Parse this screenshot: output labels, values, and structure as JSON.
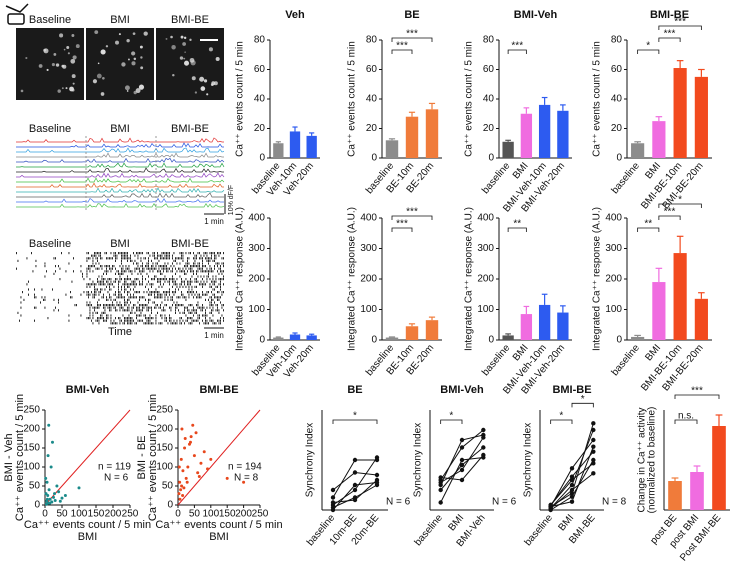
{
  "imaging": {
    "image_labels": [
      "Baseline",
      "BMI",
      "BMI-BE"
    ],
    "trace_labels": [
      "Baseline",
      "BMI",
      "BMI-BE"
    ],
    "trace_scale": "1 min",
    "trace_dff": "10% dF/F",
    "raster_labels": [
      "Baseline",
      "BMI",
      "BMI-BE"
    ],
    "raster_xlabel": "Time",
    "raster_scale": "1 min"
  },
  "chart_data": [
    {
      "type": "bar",
      "title": "Veh",
      "ylabel": "Ca⁺⁺ events count / 5 min",
      "categories": [
        "baseline",
        "Veh-10m",
        "Veh-20m"
      ],
      "values": [
        10,
        18,
        15
      ],
      "errors": [
        1,
        3,
        2
      ],
      "colors": [
        "#8c8c8c",
        "#2d5bf0",
        "#2d5bf0"
      ],
      "ylim": [
        0,
        80
      ],
      "yticks": [
        0,
        20,
        40,
        60,
        80
      ]
    },
    {
      "type": "bar",
      "title": "BE",
      "ylabel": "Ca⁺⁺ events count / 5 min",
      "categories": [
        "baseline",
        "BE-10m",
        "BE-20m"
      ],
      "values": [
        12,
        28,
        33
      ],
      "errors": [
        1,
        3,
        4
      ],
      "colors": [
        "#8c8c8c",
        "#f07b3a",
        "#f07b3a"
      ],
      "ylim": [
        0,
        80
      ],
      "yticks": [
        0,
        20,
        40,
        60,
        80
      ],
      "brackets": [
        {
          "from": 0,
          "to": 1,
          "text": "***"
        },
        {
          "from": 0,
          "to": 2,
          "text": "***"
        }
      ]
    },
    {
      "type": "bar",
      "title": "BMI-Veh",
      "ylabel": "Ca⁺⁺ events count / 5 min",
      "categories": [
        "baseline",
        "BMI",
        "BMI-Veh-10m",
        "BMI-Veh-20m"
      ],
      "values": [
        11,
        30,
        36,
        32
      ],
      "errors": [
        1,
        4,
        5,
        4
      ],
      "colors": [
        "#555555",
        "#f06ce0",
        "#2d5bf0",
        "#2d5bf0"
      ],
      "ylim": [
        0,
        80
      ],
      "yticks": [
        0,
        20,
        40,
        60,
        80
      ],
      "brackets": [
        {
          "from": 0,
          "to": 1,
          "text": "***"
        }
      ]
    },
    {
      "type": "bar",
      "title": "BMI-BE",
      "ylabel": "Ca⁺⁺ events count / 5 min",
      "categories": [
        "baseline",
        "BMI",
        "BMI-BE-10m",
        "BMI-BE-20m"
      ],
      "values": [
        10,
        25,
        61,
        55
      ],
      "errors": [
        1,
        3,
        5,
        5
      ],
      "colors": [
        "#8c8c8c",
        "#f06ce0",
        "#f24a1e",
        "#f24a1e"
      ],
      "ylim": [
        0,
        80
      ],
      "yticks": [
        0,
        20,
        40,
        60,
        80
      ],
      "brackets": [
        {
          "from": 0,
          "to": 1,
          "text": "*"
        },
        {
          "from": 1,
          "to": 2,
          "text": "***"
        },
        {
          "from": 1,
          "to": 3,
          "text": "***"
        }
      ]
    },
    {
      "type": "bar",
      "ylabel": "Integrated Ca⁺⁺ response (A.U.)",
      "categories": [
        "baseline",
        "Veh-10m",
        "Veh-20m"
      ],
      "values": [
        8,
        18,
        15
      ],
      "errors": [
        2,
        5,
        4
      ],
      "colors": [
        "#8c8c8c",
        "#2d5bf0",
        "#2d5bf0"
      ],
      "ylim": [
        0,
        400
      ],
      "yticks": [
        0,
        100,
        200,
        300,
        400
      ]
    },
    {
      "type": "bar",
      "ylabel": "Integrated Ca⁺⁺ response (A.U.)",
      "categories": [
        "baseline",
        "BE-10m",
        "BE-20m"
      ],
      "values": [
        8,
        45,
        65
      ],
      "errors": [
        2,
        8,
        10
      ],
      "colors": [
        "#8c8c8c",
        "#f07b3a",
        "#f07b3a"
      ],
      "ylim": [
        0,
        400
      ],
      "yticks": [
        0,
        100,
        200,
        300,
        400
      ],
      "brackets": [
        {
          "from": 0,
          "to": 1,
          "text": "***"
        },
        {
          "from": 0,
          "to": 2,
          "text": "***"
        }
      ]
    },
    {
      "type": "bar",
      "ylabel": "Integrated Ca⁺⁺ response (A.U.)",
      "categories": [
        "baseline",
        "BMI",
        "BMI-Veh-10m",
        "BMI-Veh-20m"
      ],
      "values": [
        15,
        85,
        115,
        90
      ],
      "errors": [
        5,
        25,
        35,
        22
      ],
      "colors": [
        "#555555",
        "#f06ce0",
        "#2d5bf0",
        "#2d5bf0"
      ],
      "ylim": [
        0,
        400
      ],
      "yticks": [
        0,
        100,
        200,
        300,
        400
      ],
      "brackets": [
        {
          "from": 0,
          "to": 1,
          "text": "**"
        }
      ]
    },
    {
      "type": "bar",
      "ylabel": "Integrated Ca⁺⁺ response (A.U.)",
      "categories": [
        "baseline",
        "BMI",
        "BMI-BE-10m",
        "BMI-BE-20m"
      ],
      "values": [
        10,
        190,
        285,
        135
      ],
      "errors": [
        5,
        45,
        55,
        20
      ],
      "colors": [
        "#8c8c8c",
        "#f06ce0",
        "#f24a1e",
        "#f24a1e"
      ],
      "ylim": [
        0,
        400
      ],
      "yticks": [
        0,
        100,
        200,
        300,
        400
      ],
      "brackets": [
        {
          "from": 0,
          "to": 1,
          "text": "**"
        },
        {
          "from": 1,
          "to": 2,
          "text": "***"
        },
        {
          "from": 1,
          "to": 3,
          "text": "*"
        }
      ]
    },
    {
      "type": "scatter",
      "title": "BMI-Veh",
      "ylabel": "BMI - Veh",
      "ylabel2": "Ca⁺⁺ events count / 5 min",
      "xlabel": "Ca⁺⁺ events count / 5 min",
      "xlabel2": "BMI",
      "n_text": "n =  119",
      "N_text": "N = 6",
      "color": "#1a8a8a",
      "xlim": [
        0,
        250
      ],
      "ylim": [
        0,
        250
      ],
      "xticks": [
        0,
        50,
        100,
        150,
        200,
        250
      ],
      "yticks": [
        0,
        50,
        100,
        150,
        200,
        250
      ],
      "x": [
        5,
        8,
        10,
        12,
        15,
        3,
        20,
        25,
        6,
        30,
        18,
        40,
        50,
        9,
        2,
        14,
        60,
        35,
        22,
        4,
        100,
        11,
        7,
        45,
        28
      ],
      "y": [
        10,
        25,
        5,
        40,
        15,
        30,
        8,
        20,
        60,
        12,
        100,
        35,
        18,
        130,
        70,
        5,
        25,
        50,
        165,
        2,
        45,
        210,
        15,
        10,
        30
      ]
    },
    {
      "type": "scatter",
      "title": "BMI-BE",
      "ylabel": "BMI - BE",
      "ylabel2": "Ca⁺⁺ events count / 5 min",
      "xlabel": "Ca⁺⁺ events count / 5 min",
      "xlabel2": "BMI",
      "n_text": "n =  194",
      "N_text": "N = 8",
      "color": "#e8471c",
      "xlim": [
        0,
        250
      ],
      "ylim": [
        0,
        250
      ],
      "xticks": [
        0,
        50,
        100,
        150,
        200,
        250
      ],
      "yticks": [
        0,
        50,
        100,
        150,
        200,
        250
      ],
      "x": [
        5,
        10,
        15,
        20,
        8,
        30,
        40,
        25,
        50,
        12,
        3,
        60,
        35,
        18,
        70,
        45,
        28,
        80,
        90,
        22,
        6,
        55,
        14,
        100,
        65,
        11,
        38,
        150,
        4,
        200
      ],
      "y": [
        60,
        120,
        90,
        150,
        40,
        100,
        180,
        70,
        130,
        200,
        30,
        85,
        160,
        45,
        110,
        210,
        60,
        140,
        95,
        175,
        15,
        190,
        25,
        120,
        75,
        50,
        165,
        70,
        100,
        60
      ]
    },
    {
      "type": "paired",
      "title": "BE",
      "ylabel": "Synchrony Index",
      "N_text": "N = 6",
      "categories": [
        "baseline",
        "10m-BE",
        "20m-BE"
      ],
      "ylim": [
        0,
        0.4
      ],
      "subjects": [
        [
          0.02,
          0.08,
          0.21
        ],
        [
          0.05,
          0.2,
          0.2
        ],
        [
          0.01,
          0.05,
          0.1
        ],
        [
          0.03,
          0.04,
          0.12
        ],
        [
          0.08,
          0.15,
          0.14
        ],
        [
          0.0,
          0.1,
          0.11
        ]
      ],
      "brackets": [
        {
          "from": 0,
          "to": 2,
          "text": "*"
        }
      ]
    },
    {
      "type": "paired",
      "title": "BMI-Veh",
      "ylabel": "Synchrony Index",
      "N_text": "N = 6",
      "categories": [
        "baseline",
        "BMI",
        "BMI-Veh"
      ],
      "ylim": [
        0,
        0.4
      ],
      "subjects": [
        [
          0.12,
          0.25,
          0.32
        ],
        [
          0.1,
          0.28,
          0.3
        ],
        [
          0.08,
          0.18,
          0.25
        ],
        [
          0.13,
          0.12,
          0.22
        ],
        [
          0.03,
          0.2,
          0.21
        ],
        [
          0.11,
          0.16,
          0.29
        ]
      ],
      "brackets": [
        {
          "from": 0,
          "to": 1,
          "text": "*"
        }
      ]
    },
    {
      "type": "paired",
      "title": "BMI-BE",
      "ylabel": "Synchrony Index",
      "N_text": "N = 8",
      "categories": [
        "baseline",
        "BMI",
        "BMI-BE"
      ],
      "ylim": [
        0,
        0.6
      ],
      "subjects": [
        [
          0.02,
          0.1,
          0.52
        ],
        [
          0.01,
          0.15,
          0.48
        ],
        [
          0.03,
          0.2,
          0.35
        ],
        [
          0.0,
          0.08,
          0.3
        ],
        [
          0.02,
          0.25,
          0.42
        ],
        [
          0.01,
          0.12,
          0.22
        ],
        [
          0.03,
          0.18,
          0.28
        ],
        [
          0.02,
          0.05,
          0.38
        ]
      ],
      "brackets": [
        {
          "from": 0,
          "to": 1,
          "text": "*"
        },
        {
          "from": 1,
          "to": 2,
          "text": "*"
        }
      ]
    },
    {
      "type": "bar",
      "ylabel": "Change in Ca⁺⁺ activity",
      "ylabel2": "(normalized to baseline)",
      "categories": [
        "post BE",
        "post BMI",
        "Post BMI-BE"
      ],
      "values": [
        1.45,
        1.9,
        4.2
      ],
      "errors": [
        0.15,
        0.3,
        0.55
      ],
      "colors": [
        "#f07b3a",
        "#f06ce0",
        "#f24a1e"
      ],
      "ylim": [
        0,
        5
      ],
      "brackets": [
        {
          "from": 0,
          "to": 1,
          "text": "n.s."
        },
        {
          "from": 0,
          "to": 2,
          "text": "***"
        }
      ]
    }
  ]
}
